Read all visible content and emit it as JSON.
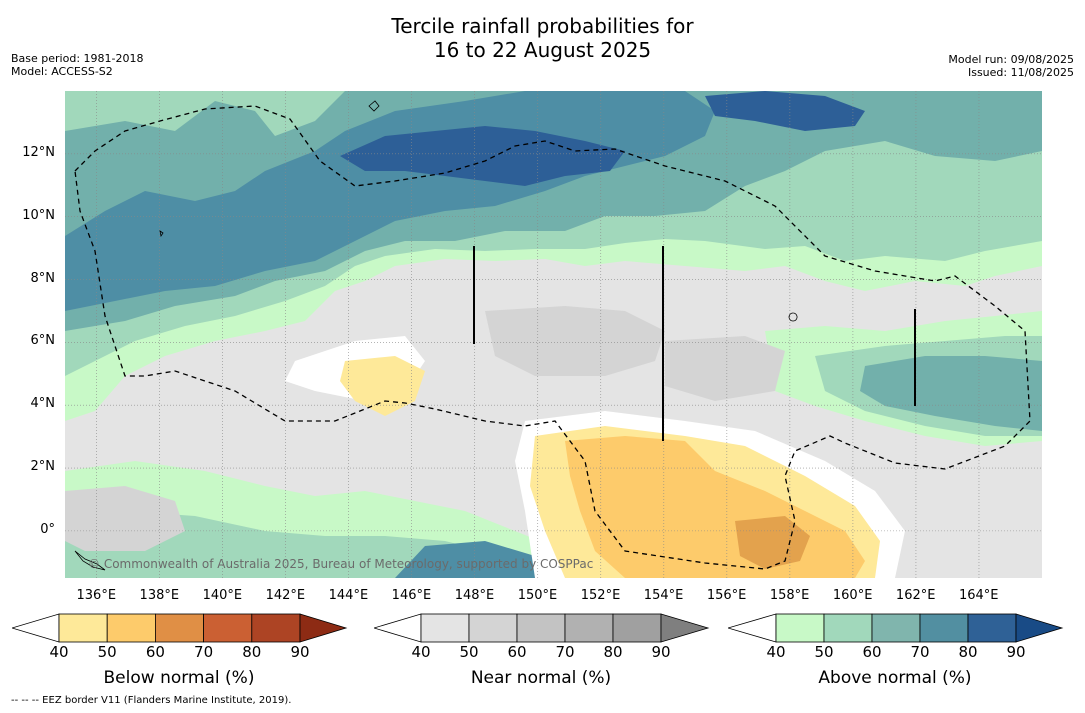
{
  "title": {
    "line1": "Tercile rainfall probabilities for",
    "line2": "16 to 22 August 2025"
  },
  "meta_left": {
    "base_period": "Base period: 1981-2018",
    "model": "Model: ACCESS-S2"
  },
  "meta_right": {
    "model_run": "Model run: 09/08/2025",
    "issued": "Issued: 11/08/2025"
  },
  "map": {
    "copyright": "© Commonwealth of Australia 2025, Bureau of Meteorology, supported by COSPPac",
    "lon_range": [
      135,
      166
    ],
    "lat_range": [
      -1.5,
      14
    ],
    "lon_ticks": [
      "136°E",
      "138°E",
      "140°E",
      "142°E",
      "144°E",
      "146°E",
      "148°E",
      "150°E",
      "152°E",
      "154°E",
      "156°E",
      "158°E",
      "160°E",
      "162°E",
      "164°E"
    ],
    "lat_ticks": [
      "0°",
      "2°N",
      "4°N",
      "6°N",
      "8°N",
      "10°N",
      "12°N"
    ],
    "colors": {
      "background_near": "#e4e4e4",
      "no_signal": "#ffffff",
      "below_50": "#fee999",
      "below_60": "#fdcb6b",
      "above_50": "#c8f9c7",
      "above_60": "#a1d8bb",
      "above_70": "#72b0ab",
      "above_80": "#4e8ea5",
      "above_90": "#2d5f97",
      "near_50": "#d4d4d4",
      "near_60": "#c3c3c3"
    }
  },
  "colorbars": [
    {
      "name": "below",
      "title": "Below normal (%)",
      "ticks": [
        "40",
        "50",
        "60",
        "70",
        "80",
        "90"
      ],
      "colors": [
        "#ffffff",
        "#fee999",
        "#fdcb6b",
        "#e08f45",
        "#cb6033",
        "#ad4424",
        "#8d2b14"
      ]
    },
    {
      "name": "near",
      "title": "Near normal (%)",
      "ticks": [
        "40",
        "50",
        "60",
        "70",
        "80",
        "90"
      ],
      "colors": [
        "#ffffff",
        "#e4e4e4",
        "#d4d4d4",
        "#c3c3c3",
        "#b1b1b1",
        "#a0a0a0",
        "#7f7f7f"
      ]
    },
    {
      "name": "above",
      "title": "Above normal (%)",
      "ticks": [
        "40",
        "50",
        "60",
        "70",
        "80",
        "90"
      ],
      "colors": [
        "#ffffff",
        "#c8f9c7",
        "#a1d8bb",
        "#80b5ad",
        "#528fa1",
        "#2f6196",
        "#194b86"
      ]
    }
  ],
  "footnote": "--  --  -- EEZ border V11 (Flanders Marine Institute, 2019)."
}
